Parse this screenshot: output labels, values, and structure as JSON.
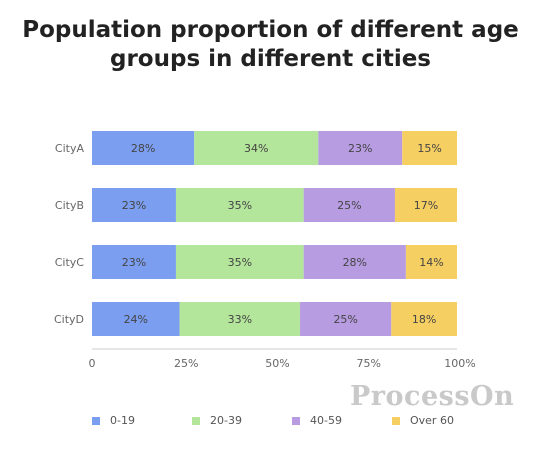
{
  "chart_data": {
    "type": "bar",
    "orientation": "horizontal",
    "stacked": true,
    "title": "Population proportion of different age groups in different cities",
    "categories": [
      "CityA",
      "CityB",
      "CityC",
      "CityD"
    ],
    "series": [
      {
        "name": "0-19",
        "color": "#7b9ef0",
        "values": [
          28,
          23,
          23,
          24
        ]
      },
      {
        "name": "20-39",
        "color": "#b3e59a",
        "values": [
          34,
          35,
          35,
          33
        ]
      },
      {
        "name": "40-59",
        "color": "#b79ce2",
        "values": [
          23,
          25,
          28,
          25
        ]
      },
      {
        "name": "Over 60",
        "color": "#f6cf63",
        "values": [
          15,
          17,
          14,
          18
        ]
      }
    ],
    "xlim": [
      0,
      100
    ],
    "xticks": [
      "0",
      "25%",
      "50%",
      "75%",
      "100%"
    ],
    "data_label_suffix": "%",
    "legend_position": "bottom",
    "grid": false
  },
  "watermark": "ProcessOn"
}
